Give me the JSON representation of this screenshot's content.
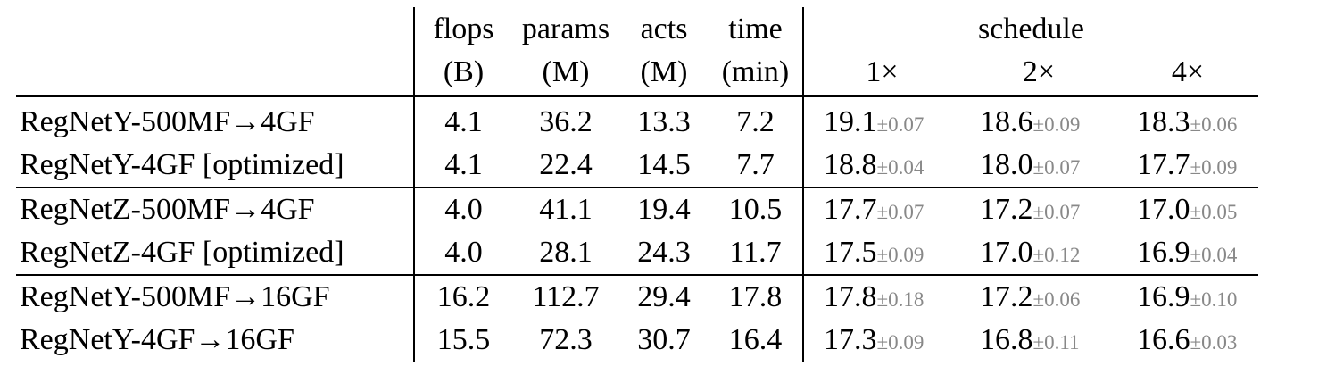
{
  "header": {
    "metrics": [
      {
        "name": "flops",
        "unit": "(B)"
      },
      {
        "name": "params",
        "unit": "(M)"
      },
      {
        "name": "acts",
        "unit": "(M)"
      },
      {
        "name": "time",
        "unit": "(min)"
      }
    ],
    "schedule_label": "schedule",
    "schedules": [
      "1×",
      "2×",
      "4×"
    ]
  },
  "groups": [
    {
      "rows": [
        {
          "model": "RegNetY-500MF→4GF",
          "flops": "4.1",
          "params": "36.2",
          "acts": "13.3",
          "time": "7.2",
          "sched": [
            {
              "v": "19.1",
              "pm": "±0.07"
            },
            {
              "v": "18.6",
              "pm": "±0.09"
            },
            {
              "v": "18.3",
              "pm": "±0.06"
            }
          ]
        },
        {
          "model": "RegNetY-4GF [optimized]",
          "flops": "4.1",
          "params": "22.4",
          "acts": "14.5",
          "time": "7.7",
          "sched": [
            {
              "v": "18.8",
              "pm": "±0.04"
            },
            {
              "v": "18.0",
              "pm": "±0.07"
            },
            {
              "v": "17.7",
              "pm": "±0.09"
            }
          ]
        }
      ]
    },
    {
      "rows": [
        {
          "model": "RegNetZ-500MF→4GF",
          "flops": "4.0",
          "params": "41.1",
          "acts": "19.4",
          "time": "10.5",
          "sched": [
            {
              "v": "17.7",
              "pm": "±0.07"
            },
            {
              "v": "17.2",
              "pm": "±0.07"
            },
            {
              "v": "17.0",
              "pm": "±0.05"
            }
          ]
        },
        {
          "model": "RegNetZ-4GF [optimized]",
          "flops": "4.0",
          "params": "28.1",
          "acts": "24.3",
          "time": "11.7",
          "sched": [
            {
              "v": "17.5",
              "pm": "±0.09"
            },
            {
              "v": "17.0",
              "pm": "±0.12"
            },
            {
              "v": "16.9",
              "pm": "±0.04"
            }
          ]
        }
      ]
    },
    {
      "rows": [
        {
          "model": "RegNetY-500MF→16GF",
          "flops": "16.2",
          "params": "112.7",
          "acts": "29.4",
          "time": "17.8",
          "sched": [
            {
              "v": "17.8",
              "pm": "±0.18"
            },
            {
              "v": "17.2",
              "pm": "±0.06"
            },
            {
              "v": "16.9",
              "pm": "±0.10"
            }
          ]
        },
        {
          "model": "RegNetY-4GF→16GF",
          "flops": "15.5",
          "params": "72.3",
          "acts": "30.7",
          "time": "16.4",
          "sched": [
            {
              "v": "17.3",
              "pm": "±0.09"
            },
            {
              "v": "16.8",
              "pm": "±0.11"
            },
            {
              "v": "16.6",
              "pm": "±0.03"
            }
          ]
        }
      ]
    }
  ]
}
